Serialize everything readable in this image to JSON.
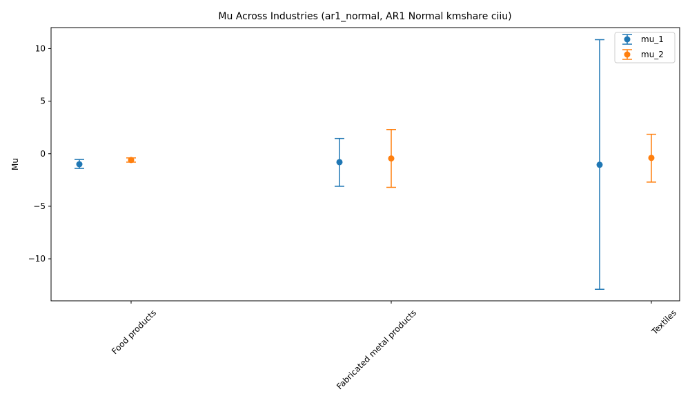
{
  "chart_data": {
    "type": "scatter",
    "title": "Mu Across Industries (ar1_normal, AR1 Normal kmshare ciiu)",
    "xlabel": "",
    "ylabel": "Mu",
    "categories": [
      "Food products",
      "Fabricated metal products",
      "Textiles"
    ],
    "ylim": [
      -14,
      12
    ],
    "yticks": [
      -10,
      -5,
      0,
      5,
      10
    ],
    "grid": false,
    "legend": "top-right",
    "series": [
      {
        "name": "mu_1",
        "color": "#1f77b4",
        "values": [
          -1.0,
          -0.8,
          -1.05
        ],
        "lower": [
          -1.4,
          -3.1,
          -12.9
        ],
        "upper": [
          -0.55,
          1.45,
          10.85
        ]
      },
      {
        "name": "mu_2",
        "color": "#ff7f0e",
        "values": [
          -0.6,
          -0.45,
          -0.4
        ],
        "lower": [
          -0.8,
          -3.2,
          -2.7
        ],
        "upper": [
          -0.4,
          2.3,
          1.85
        ]
      }
    ]
  }
}
